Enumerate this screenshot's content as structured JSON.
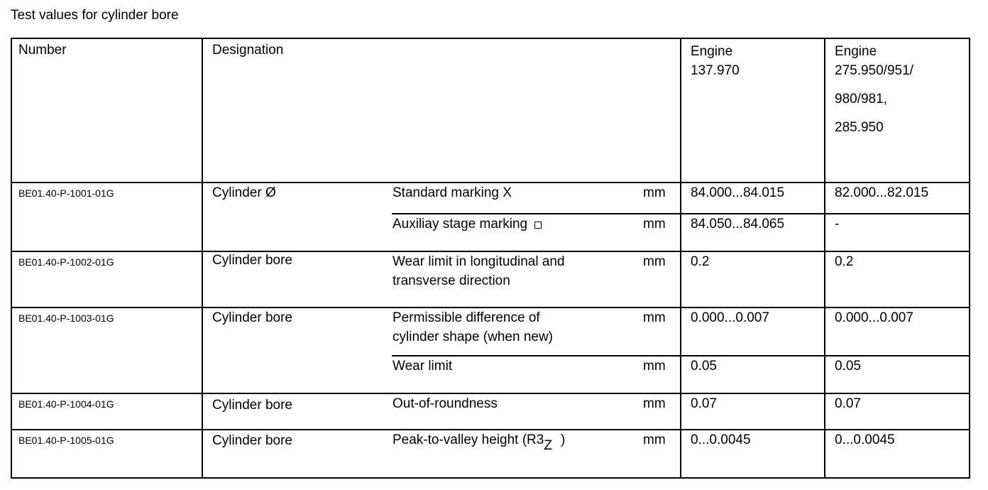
{
  "title": "Test values for cylinder bore",
  "headers": {
    "number": "Number",
    "designation": "Designation",
    "engine1": [
      "Engine",
      "137.970"
    ],
    "engine2": [
      "Engine",
      "275.950/951/",
      "980/981,",
      "285.950"
    ]
  },
  "rows": [
    {
      "number": "BE01.40-P-1001-01G",
      "designation": "Cylinder Ø",
      "subs": [
        {
          "desc": [
            "Standard marking X"
          ],
          "unit": "mm",
          "e1": "84.000...84.015",
          "e2": "82.000...82.015"
        },
        {
          "desc": [
            "Auxiliay stage marking"
          ],
          "icon": "square-marking-icon",
          "unit": "mm",
          "e1": "84.050...84.065",
          "e2": "-"
        }
      ]
    },
    {
      "number": "BE01.40-P-1002-01G",
      "designation": "Cylinder bore",
      "subs": [
        {
          "desc": [
            "Wear limit in longitudinal and",
            "transverse direction"
          ],
          "unit": "mm",
          "e1": "0.2",
          "e2": "0.2"
        }
      ]
    },
    {
      "number": "BE01.40-P-1003-01G",
      "designation": "Cylinder bore",
      "subs": [
        {
          "desc": [
            "Permissible difference of",
            "cylinder shape (when new)"
          ],
          "unit": "mm",
          "e1": "0.000...0.007",
          "e2": "0.000...0.007"
        },
        {
          "desc": [
            "Wear limit"
          ],
          "unit": "mm",
          "e1": "0.05",
          "e2": "0.05"
        }
      ]
    },
    {
      "number": "BE01.40-P-1004-01G",
      "designation": "Cylinder bore",
      "subs": [
        {
          "desc": [
            "Out-of-roundness"
          ],
          "unit": "mm",
          "e1": "0.07",
          "e2": "0.07"
        }
      ]
    },
    {
      "number": "BE01.40-P-1005-01G",
      "designation": "Cylinder bore",
      "subs": [
        {
          "desc": [
            "Peak-to-valley height (R3"
          ],
          "subscript": "Z",
          "desc_end": ")",
          "unit": "mm",
          "e1": "0...0.0045",
          "e2": "0...0.0045"
        }
      ]
    }
  ]
}
